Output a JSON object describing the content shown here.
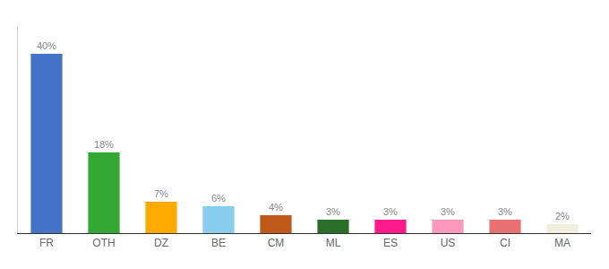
{
  "chart_data": {
    "type": "bar",
    "categories": [
      "FR",
      "OTH",
      "DZ",
      "BE",
      "CM",
      "ML",
      "ES",
      "US",
      "CI",
      "MA"
    ],
    "values": [
      40,
      18,
      7,
      6,
      4,
      3,
      3,
      3,
      3,
      2
    ],
    "value_labels": [
      "40%",
      "18%",
      "7%",
      "6%",
      "4%",
      "3%",
      "3%",
      "3%",
      "3%",
      "2%"
    ],
    "colors": [
      "#4472c4",
      "#33a832",
      "#ffaa00",
      "#88ccee",
      "#c05a1a",
      "#2a6e2a",
      "#ff1a8c",
      "#ff99bb",
      "#e87070",
      "#f0eedd"
    ],
    "ylim": [
      0,
      46
    ],
    "grid": false,
    "data_labels": true,
    "tick_labels": "x"
  }
}
